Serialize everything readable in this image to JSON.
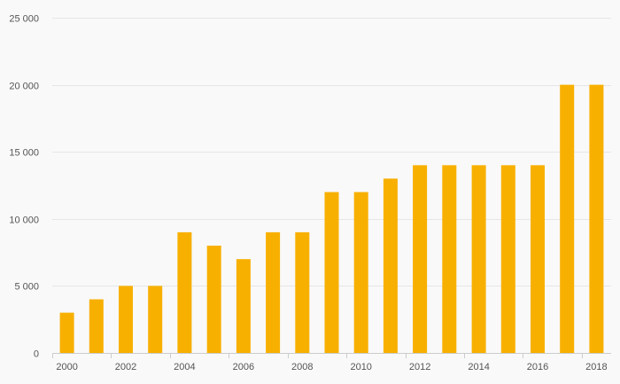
{
  "chart_data": {
    "type": "bar",
    "title": "",
    "xlabel": "",
    "ylabel": "",
    "categories": [
      "2000",
      "2001",
      "2002",
      "2003",
      "2004",
      "2005",
      "2006",
      "2007",
      "2008",
      "2009",
      "2010",
      "2011",
      "2012",
      "2013",
      "2014",
      "2015",
      "2016",
      "2017",
      "2018"
    ],
    "series": [
      {
        "values": [
          3000,
          4000,
          5000,
          5000,
          9000,
          8000,
          7000,
          9000,
          9000,
          12000,
          12000,
          13000,
          14000,
          14000,
          14000,
          14000,
          14000,
          20000,
          20000
        ]
      }
    ],
    "ylim": [
      0,
      25000
    ],
    "yticks": [
      0,
      5000,
      10000,
      15000,
      20000,
      25000
    ],
    "ytick_labels": [
      "0",
      "5 000",
      "10 000",
      "15 000",
      "20 000",
      "25 000"
    ],
    "xtick_labels": [
      "2000",
      "2002",
      "2004",
      "2006",
      "2008",
      "2010",
      "2012",
      "2014",
      "2016",
      "2018"
    ],
    "grid": true,
    "legend": "none",
    "colors": {
      "bar": "#f8b000",
      "grid": "#e6e6e6",
      "axis": "#cccccc",
      "text": "#555555",
      "background": "#f9f9f9"
    }
  }
}
